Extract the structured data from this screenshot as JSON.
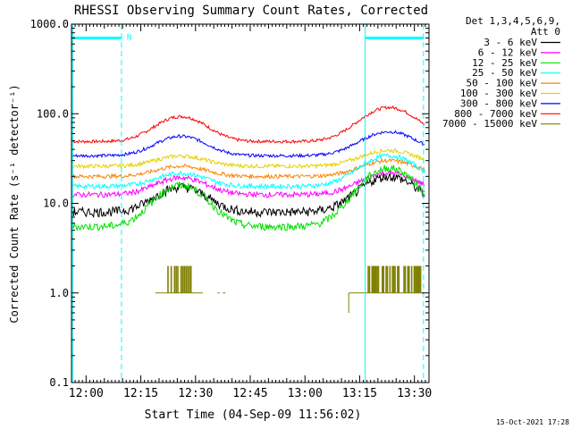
{
  "chart_data": {
    "type": "line",
    "title": "RHESSI Observing Summary Count Rates, Corrected",
    "ylabel": "Corrected Count Rate (s⁻¹ detector⁻¹)",
    "xlabel": "Start Time (04-Sep-09 11:56:02)",
    "yscale": "log",
    "ylim": [
      0.1,
      1000
    ],
    "xlim_minutes": [
      0,
      98
    ],
    "y_tick_labels": [
      "0.1",
      "1.0",
      "10.0",
      "100.0",
      "1000.0"
    ],
    "x_ticks": [
      {
        "minute": 4,
        "label": "12:00"
      },
      {
        "minute": 19,
        "label": "12:15"
      },
      {
        "minute": 34,
        "label": "12:30"
      },
      {
        "minute": 49,
        "label": "12:45"
      },
      {
        "minute": 64,
        "label": "13:00"
      },
      {
        "minute": 79,
        "label": "13:15"
      },
      {
        "minute": 94,
        "label": "13:30"
      }
    ],
    "legend_header": [
      "Det 1,3,4,5,6,9,",
      "Att 0"
    ],
    "legend_position": "right",
    "series": [
      {
        "name": "3 - 6 keV",
        "color": "#000000",
        "base": 8,
        "amp1": 1.9,
        "amp2": 2.5,
        "noise": 0.12
      },
      {
        "name": "6 - 12 keV",
        "color": "#ff00ff",
        "base": 12.5,
        "amp1": 1.55,
        "amp2": 1.75,
        "noise": 0.07
      },
      {
        "name": "12 - 25 keV",
        "color": "#00e000",
        "base": 5.5,
        "amp1": 2.9,
        "amp2": 4.5,
        "noise": 0.1
      },
      {
        "name": "25 - 50 keV",
        "color": "#00ffff",
        "base": 15.5,
        "amp1": 1.4,
        "amp2": 2.2,
        "noise": 0.06
      },
      {
        "name": "50 - 100 keV",
        "color": "#ff8000",
        "base": 20,
        "amp1": 1.3,
        "amp2": 1.5,
        "noise": 0.05
      },
      {
        "name": "100 - 300 keV",
        "color": "#e8d000",
        "base": 26,
        "amp1": 1.3,
        "amp2": 1.5,
        "noise": 0.05
      },
      {
        "name": "300 - 800 keV",
        "color": "#0000ff",
        "base": 34,
        "amp1": 1.65,
        "amp2": 1.85,
        "noise": 0.04
      },
      {
        "name": "800 - 7000 keV",
        "color": "#ff0000",
        "base": 49,
        "amp1": 1.9,
        "amp2": 2.4,
        "noise": 0.04
      },
      {
        "name": "7000 - 15000 keV",
        "color": "#808000",
        "base": 1.0,
        "amp1": 0,
        "amp2": 0,
        "noise": 0
      }
    ],
    "flag_bars": [
      {
        "label": "N",
        "x_start_min": 0.3,
        "x_end_min": 13.7,
        "y": 700
      }
    ],
    "flag_bar_right": {
      "x_start_min": 80.5,
      "x_end_min": 96.5,
      "y": 700
    },
    "dashed_markers_min": [
      13.7,
      96.5
    ],
    "solid_markers_min": [
      0.3,
      80.5
    ],
    "colors": {
      "cyan_marker": "#00ffff"
    }
  },
  "footer": {
    "timestamp": "15-Oct-2021 17:28"
  }
}
